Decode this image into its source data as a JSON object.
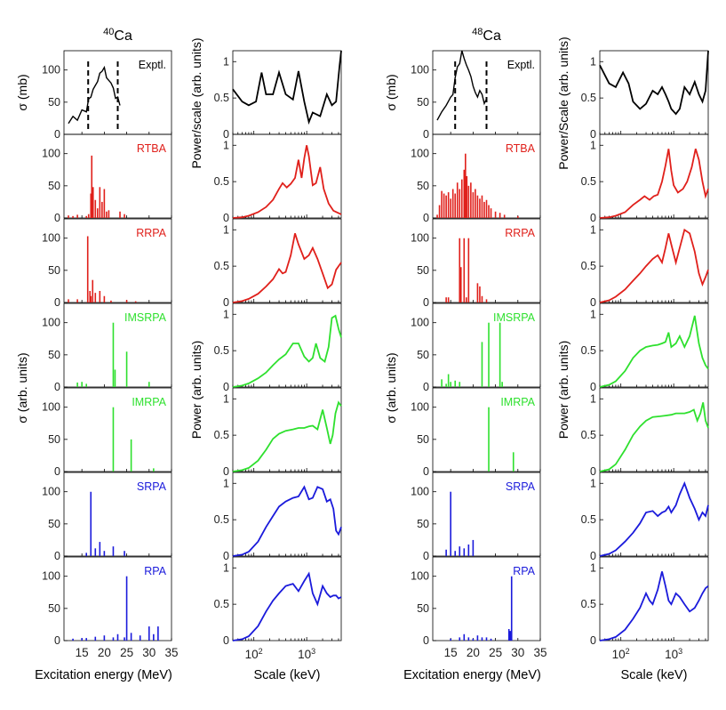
{
  "figure": {
    "nuclei": [
      {
        "mass": "40",
        "symbol": "Ca",
        "spectrum_ylabel_top": "σ (mb)",
        "spectrum_ylabel_mid": "σ (arb. units)",
        "wavelet_ylabel_top": "Power/scale (arb. units)",
        "wavelet_ylabel_mid": "Power (arb. units)"
      },
      {
        "mass": "48",
        "symbol": "Ca",
        "spectrum_ylabel_top": "σ (mb)",
        "spectrum_ylabel_mid": "σ (arb. units)",
        "wavelet_ylabel_top": "Power/Scale (arb. units)",
        "wavelet_ylabel_mid": "Power (arb. units)"
      }
    ],
    "models": [
      {
        "name": "Exptl.",
        "color": "#000000"
      },
      {
        "name": "RTBA",
        "color": "#e0201b"
      },
      {
        "name": "RRPA",
        "color": "#e0201b"
      },
      {
        "name": "IMSRPA",
        "color": "#2ee02e"
      },
      {
        "name": "IMRPA",
        "color": "#2ee02e"
      },
      {
        "name": "SRPA",
        "color": "#1a1adb"
      },
      {
        "name": "RPA",
        "color": "#1a1adb"
      }
    ],
    "spectrum_xlabel": "Excitation energy (MeV)",
    "wavelet_xlabel": "Scale (keV)",
    "spectrum_xticks": [
      "15",
      "20",
      "25",
      "30",
      "35"
    ],
    "spectrum_yticks": [
      "0",
      "50",
      "100"
    ],
    "wavelet_xticks": [
      "10",
      "2",
      "10",
      "3"
    ],
    "wavelet_yticks": [
      "0",
      "0.5",
      "1"
    ]
  },
  "chart_data": [
    {
      "type": "line",
      "panel": "40Ca Exptl. spectrum",
      "xlim": [
        11,
        35
      ],
      "ylim": [
        0,
        130
      ],
      "x": [
        12,
        13,
        14,
        15,
        16,
        16.5,
        17,
        17.5,
        18,
        18.5,
        19,
        19.5,
        20,
        20.5,
        21,
        21.5,
        22,
        22.5,
        23,
        23.5
      ],
      "y": [
        17,
        28,
        22,
        38,
        35,
        55,
        58,
        70,
        76,
        82,
        95,
        98,
        104,
        88,
        84,
        80,
        72,
        56,
        58,
        45
      ],
      "markers_dashed_x": [
        16.4,
        23.0
      ]
    },
    {
      "type": "bar",
      "panel": "40Ca RTBA",
      "xlim": [
        11,
        35
      ],
      "ylim": [
        0,
        130
      ],
      "x": [
        12,
        13,
        14,
        16,
        16.5,
        17,
        17.2,
        17.5,
        18,
        18.5,
        19,
        19.5,
        20,
        20.5,
        21,
        23.5,
        24.5
      ],
      "values": [
        4,
        3,
        5,
        3,
        6,
        38,
        97,
        48,
        28,
        15,
        48,
        25,
        45,
        10,
        12,
        10,
        6
      ]
    },
    {
      "type": "bar",
      "panel": "40Ca RRPA",
      "xlim": [
        11,
        35
      ],
      "ylim": [
        0,
        130
      ],
      "x": [
        12,
        14,
        16.3,
        16.8,
        17,
        17.4,
        18,
        19,
        20,
        21.5,
        25,
        27
      ],
      "values": [
        5,
        5,
        103,
        18,
        10,
        35,
        15,
        18,
        10,
        3,
        4,
        2
      ]
    },
    {
      "type": "bar",
      "panel": "40Ca IMSRPA",
      "xlim": [
        11,
        35
      ],
      "ylim": [
        0,
        130
      ],
      "x": [
        14,
        15,
        16,
        22,
        22.4,
        25,
        30
      ],
      "values": [
        7,
        8,
        5,
        100,
        27,
        55,
        8
      ]
    },
    {
      "type": "bar",
      "panel": "40Ca IMRPA",
      "xlim": [
        11,
        35
      ],
      "ylim": [
        0,
        130
      ],
      "x": [
        22,
        26,
        31
      ],
      "values": [
        100,
        50,
        5
      ]
    },
    {
      "type": "bar",
      "panel": "40Ca SRPA",
      "xlim": [
        11,
        35
      ],
      "ylim": [
        0,
        130
      ],
      "x": [
        16,
        17,
        18,
        19,
        20,
        22,
        24.5
      ],
      "values": [
        5,
        100,
        12,
        22,
        8,
        15,
        8
      ]
    },
    {
      "type": "bar",
      "panel": "40Ca RPA",
      "xlim": [
        11,
        35
      ],
      "ylim": [
        0,
        130
      ],
      "x": [
        13,
        15,
        16,
        18,
        20,
        22,
        23,
        24.5,
        25,
        26,
        28,
        30,
        31,
        32
      ],
      "values": [
        3,
        4,
        4,
        6,
        8,
        5,
        10,
        5,
        100,
        12,
        8,
        22,
        10,
        22
      ]
    },
    {
      "type": "line",
      "panel": "40Ca Exptl. wavelet",
      "xlim": [
        40,
        4500
      ],
      "ylim": [
        0,
        1.15
      ],
      "x": [
        40,
        60,
        80,
        110,
        140,
        170,
        230,
        300,
        400,
        550,
        700,
        900,
        1100,
        1300,
        1800,
        2400,
        3000,
        3600,
        4200,
        4500
      ],
      "y": [
        0.62,
        0.45,
        0.4,
        0.45,
        0.85,
        0.55,
        0.55,
        0.85,
        0.55,
        0.48,
        0.87,
        0.45,
        0.17,
        0.3,
        0.25,
        0.55,
        0.4,
        0.45,
        0.95,
        1.15
      ]
    },
    {
      "type": "line",
      "panel": "40Ca RTBA wavelet",
      "xlim": [
        40,
        4500
      ],
      "ylim": [
        0,
        1.15
      ],
      "x": [
        40,
        60,
        80,
        120,
        170,
        230,
        300,
        350,
        420,
        500,
        600,
        700,
        800,
        900,
        1000,
        1100,
        1300,
        1500,
        1800,
        2100,
        2600,
        3200,
        4500
      ],
      "y": [
        0.0,
        0.01,
        0.03,
        0.08,
        0.15,
        0.25,
        0.4,
        0.48,
        0.42,
        0.47,
        0.55,
        0.8,
        0.55,
        0.82,
        1.0,
        0.85,
        0.45,
        0.48,
        0.7,
        0.4,
        0.2,
        0.1,
        0.05
      ]
    },
    {
      "type": "line",
      "panel": "40Ca RRPA wavelet",
      "xlim": [
        40,
        4500
      ],
      "ylim": [
        0,
        1.15
      ],
      "x": [
        40,
        60,
        80,
        120,
        170,
        230,
        300,
        350,
        400,
        500,
        600,
        700,
        900,
        1100,
        1300,
        1600,
        2000,
        2500,
        3000,
        3600,
        4500
      ],
      "y": [
        0.0,
        0.02,
        0.05,
        0.12,
        0.22,
        0.32,
        0.46,
        0.4,
        0.42,
        0.65,
        0.95,
        0.8,
        0.6,
        0.65,
        0.75,
        0.6,
        0.4,
        0.2,
        0.25,
        0.45,
        0.55
      ]
    },
    {
      "type": "line",
      "panel": "40Ca IMSRPA wavelet",
      "xlim": [
        40,
        4500
      ],
      "ylim": [
        0,
        1.15
      ],
      "x": [
        40,
        60,
        80,
        120,
        170,
        230,
        300,
        400,
        550,
        700,
        900,
        1100,
        1300,
        1500,
        1800,
        2200,
        2600,
        3000,
        3500,
        4000,
        4500
      ],
      "y": [
        0.0,
        0.02,
        0.05,
        0.12,
        0.2,
        0.3,
        0.38,
        0.45,
        0.6,
        0.6,
        0.42,
        0.35,
        0.4,
        0.6,
        0.4,
        0.35,
        0.55,
        0.95,
        0.98,
        0.8,
        0.68
      ]
    },
    {
      "type": "line",
      "panel": "40Ca IMRPA wavelet",
      "xlim": [
        40,
        4500
      ],
      "ylim": [
        0,
        1.15
      ],
      "x": [
        40,
        60,
        80,
        120,
        170,
        230,
        300,
        400,
        550,
        700,
        900,
        1100,
        1300,
        1600,
        2000,
        2400,
        2800,
        3100,
        3500,
        4000,
        4500
      ],
      "y": [
        0.0,
        0.02,
        0.05,
        0.15,
        0.3,
        0.45,
        0.52,
        0.56,
        0.58,
        0.6,
        0.6,
        0.62,
        0.63,
        0.58,
        0.85,
        0.6,
        0.38,
        0.5,
        0.8,
        0.95,
        0.9
      ]
    },
    {
      "type": "line",
      "panel": "40Ca SRPA wavelet",
      "xlim": [
        40,
        4500
      ],
      "ylim": [
        0,
        1.15
      ],
      "x": [
        40,
        60,
        80,
        120,
        170,
        230,
        300,
        400,
        550,
        700,
        900,
        1100,
        1300,
        1600,
        2000,
        2400,
        2800,
        3200,
        3600,
        4000,
        4500
      ],
      "y": [
        0.0,
        0.02,
        0.06,
        0.2,
        0.4,
        0.55,
        0.68,
        0.75,
        0.8,
        0.82,
        0.95,
        0.78,
        0.8,
        0.95,
        0.92,
        0.75,
        0.78,
        0.65,
        0.35,
        0.3,
        0.4
      ]
    },
    {
      "type": "line",
      "panel": "40Ca RPA wavelet",
      "xlim": [
        40,
        4500
      ],
      "ylim": [
        0,
        1.15
      ],
      "x": [
        40,
        60,
        80,
        120,
        170,
        230,
        300,
        400,
        550,
        700,
        900,
        1100,
        1300,
        1600,
        2000,
        2400,
        2800,
        3200,
        3600,
        4000,
        4500
      ],
      "y": [
        0.0,
        0.02,
        0.06,
        0.2,
        0.4,
        0.55,
        0.65,
        0.75,
        0.78,
        0.68,
        0.82,
        0.92,
        0.65,
        0.5,
        0.75,
        0.65,
        0.6,
        0.62,
        0.62,
        0.58,
        0.6
      ]
    },
    {
      "type": "line",
      "panel": "48Ca Exptl. spectrum",
      "xlim": [
        11,
        35
      ],
      "ylim": [
        0,
        130
      ],
      "x": [
        12,
        13,
        14,
        15,
        15.5,
        16,
        16.5,
        17,
        17.5,
        18,
        18.5,
        19,
        19.5,
        20,
        20.5,
        21,
        21.5,
        22,
        22.5,
        23
      ],
      "y": [
        22,
        35,
        45,
        58,
        62,
        88,
        105,
        110,
        130,
        118,
        108,
        100,
        90,
        75,
        65,
        58,
        68,
        62,
        48,
        55
      ],
      "markers_dashed_x": [
        16.0,
        23.0
      ]
    },
    {
      "type": "bar",
      "panel": "48Ca RTBA",
      "xlim": [
        11,
        35
      ],
      "ylim": [
        0,
        130
      ],
      "x": [
        12,
        12.5,
        13,
        13.5,
        14,
        14.5,
        15,
        15.5,
        16,
        16.5,
        17,
        17.5,
        18,
        18.3,
        18.6,
        19,
        19.5,
        20,
        20.5,
        21,
        21.5,
        22,
        22.5,
        23,
        23.5,
        24,
        25,
        26,
        27,
        30
      ],
      "values": [
        5,
        20,
        42,
        38,
        35,
        40,
        30,
        45,
        38,
        55,
        45,
        60,
        75,
        100,
        65,
        50,
        55,
        40,
        45,
        35,
        30,
        35,
        25,
        28,
        20,
        15,
        10,
        8,
        5,
        3
      ]
    },
    {
      "type": "bar",
      "panel": "48Ca RRPA",
      "xlim": [
        11,
        35
      ],
      "ylim": [
        0,
        130
      ],
      "x": [
        14,
        14.5,
        17,
        17.3,
        18,
        18.5,
        19,
        21,
        21.5,
        22,
        23
      ],
      "values": [
        8,
        8,
        100,
        55,
        100,
        8,
        100,
        30,
        25,
        10,
        5
      ]
    },
    {
      "type": "bar",
      "panel": "48Ca IMSRPA",
      "xlim": [
        11,
        35
      ],
      "ylim": [
        0,
        130
      ],
      "x": [
        13,
        14,
        14.5,
        15,
        16,
        17,
        22,
        23.5,
        26,
        26.5
      ],
      "values": [
        12,
        5,
        20,
        8,
        10,
        8,
        70,
        100,
        100,
        8
      ]
    },
    {
      "type": "bar",
      "panel": "48Ca IMRPA",
      "xlim": [
        11,
        35
      ],
      "ylim": [
        0,
        130
      ],
      "x": [
        23.5,
        29
      ],
      "values": [
        100,
        30
      ]
    },
    {
      "type": "bar",
      "panel": "48Ca SRPA",
      "xlim": [
        11,
        35
      ],
      "ylim": [
        0,
        130
      ],
      "x": [
        14,
        15,
        16,
        17,
        18,
        19,
        20
      ],
      "values": [
        10,
        100,
        8,
        15,
        12,
        18,
        25
      ]
    },
    {
      "type": "bar",
      "panel": "48Ca RPA",
      "xlim": [
        11,
        35
      ],
      "ylim": [
        0,
        130
      ],
      "x": [
        15,
        17,
        18,
        19,
        20,
        21,
        22,
        23,
        24,
        28,
        28.3,
        28.6
      ],
      "values": [
        3,
        5,
        10,
        5,
        3,
        8,
        5,
        5,
        3,
        18,
        15,
        100
      ]
    },
    {
      "type": "line",
      "panel": "48Ca Exptl. wavelet",
      "xlim": [
        40,
        4500
      ],
      "ylim": [
        0,
        1.15
      ],
      "x": [
        40,
        60,
        80,
        110,
        140,
        170,
        230,
        300,
        400,
        500,
        600,
        700,
        800,
        900,
        1100,
        1300,
        1600,
        2000,
        2500,
        3000,
        3500,
        4000,
        4500
      ],
      "y": [
        0.95,
        0.7,
        0.65,
        0.85,
        0.7,
        0.45,
        0.35,
        0.42,
        0.6,
        0.55,
        0.65,
        0.55,
        0.45,
        0.35,
        0.28,
        0.35,
        0.65,
        0.55,
        0.72,
        0.55,
        0.45,
        0.6,
        1.15
      ]
    },
    {
      "type": "line",
      "panel": "48Ca RTBA wavelet",
      "xlim": [
        40,
        4500
      ],
      "ylim": [
        0,
        1.15
      ],
      "x": [
        40,
        60,
        80,
        120,
        170,
        230,
        280,
        350,
        420,
        500,
        600,
        700,
        800,
        900,
        1000,
        1200,
        1500,
        1800,
        2200,
        2600,
        3000,
        3500,
        4000,
        4500
      ],
      "y": [
        0.0,
        0.01,
        0.03,
        0.08,
        0.18,
        0.25,
        0.3,
        0.25,
        0.3,
        0.32,
        0.5,
        0.72,
        0.95,
        0.65,
        0.45,
        0.35,
        0.4,
        0.5,
        0.7,
        0.95,
        0.8,
        0.5,
        0.3,
        0.4
      ]
    },
    {
      "type": "line",
      "panel": "48Ca RRPA wavelet",
      "xlim": [
        40,
        4500
      ],
      "ylim": [
        0,
        1.15
      ],
      "x": [
        40,
        60,
        80,
        120,
        170,
        230,
        300,
        400,
        500,
        600,
        700,
        800,
        900,
        1100,
        1300,
        1600,
        2000,
        2500,
        3000,
        3500,
        4000,
        4500
      ],
      "y": [
        0.0,
        0.03,
        0.08,
        0.18,
        0.3,
        0.4,
        0.5,
        0.6,
        0.65,
        0.55,
        0.75,
        0.95,
        0.8,
        0.55,
        0.75,
        1.0,
        0.95,
        0.7,
        0.4,
        0.25,
        0.35,
        0.45
      ]
    },
    {
      "type": "line",
      "panel": "48Ca IMSRPA wavelet",
      "xlim": [
        40,
        4500
      ],
      "ylim": [
        0,
        1.15
      ],
      "x": [
        40,
        60,
        80,
        120,
        170,
        230,
        300,
        400,
        500,
        600,
        700,
        800,
        900,
        1100,
        1300,
        1600,
        2000,
        2500,
        3000,
        3500,
        4000,
        4500
      ],
      "y": [
        0.0,
        0.03,
        0.08,
        0.22,
        0.4,
        0.5,
        0.55,
        0.57,
        0.58,
        0.6,
        0.62,
        0.75,
        0.55,
        0.6,
        0.7,
        0.55,
        0.7,
        0.98,
        0.6,
        0.4,
        0.3,
        0.25
      ]
    },
    {
      "type": "line",
      "panel": "48Ca IMRPA wavelet",
      "xlim": [
        40,
        4500
      ],
      "ylim": [
        0,
        1.15
      ],
      "x": [
        40,
        60,
        80,
        120,
        170,
        230,
        300,
        400,
        550,
        700,
        900,
        1100,
        1300,
        1600,
        2000,
        2400,
        2800,
        3200,
        3600,
        4000,
        4500
      ],
      "y": [
        0.0,
        0.03,
        0.1,
        0.3,
        0.5,
        0.62,
        0.7,
        0.75,
        0.76,
        0.77,
        0.78,
        0.8,
        0.8,
        0.8,
        0.82,
        0.85,
        0.7,
        0.8,
        0.95,
        0.7,
        0.6
      ]
    },
    {
      "type": "line",
      "panel": "48Ca SRPA wavelet",
      "xlim": [
        40,
        4500
      ],
      "ylim": [
        0,
        1.15
      ],
      "x": [
        40,
        60,
        80,
        120,
        170,
        230,
        300,
        400,
        500,
        600,
        700,
        800,
        900,
        1100,
        1300,
        1600,
        2000,
        2500,
        3000,
        3500,
        4000,
        4500
      ],
      "y": [
        0.0,
        0.03,
        0.08,
        0.2,
        0.32,
        0.45,
        0.6,
        0.62,
        0.55,
        0.6,
        0.62,
        0.68,
        0.6,
        0.7,
        0.85,
        1.0,
        0.8,
        0.65,
        0.5,
        0.6,
        0.55,
        0.7
      ]
    },
    {
      "type": "line",
      "panel": "48Ca RPA wavelet",
      "xlim": [
        40,
        4500
      ],
      "ylim": [
        0,
        1.15
      ],
      "x": [
        40,
        60,
        80,
        120,
        170,
        230,
        300,
        350,
        400,
        500,
        600,
        700,
        800,
        900,
        1100,
        1300,
        1600,
        2000,
        2500,
        3000,
        3500,
        4000,
        4500
      ],
      "y": [
        0.0,
        0.02,
        0.05,
        0.15,
        0.3,
        0.45,
        0.65,
        0.55,
        0.5,
        0.7,
        0.95,
        0.75,
        0.55,
        0.5,
        0.65,
        0.6,
        0.5,
        0.4,
        0.45,
        0.55,
        0.65,
        0.72,
        0.75
      ]
    }
  ]
}
